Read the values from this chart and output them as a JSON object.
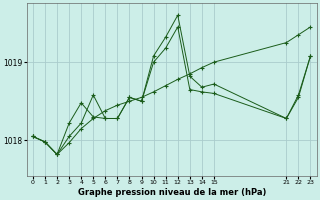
{
  "title": "Graphe pression niveau de la mer (hPa)",
  "bg_color": "#cceee8",
  "line_color": "#1a5c1a",
  "grid_color": "#aacccc",
  "yticks": [
    1018,
    1019
  ],
  "ylim": [
    1017.55,
    1019.75
  ],
  "xlim": [
    -0.5,
    23.5
  ],
  "xticks": [
    0,
    1,
    2,
    3,
    4,
    5,
    6,
    7,
    8,
    9,
    10,
    11,
    12,
    13,
    14,
    15,
    21,
    22,
    23
  ],
  "xtick_labels": [
    "0",
    "1",
    "2",
    "3",
    "4",
    "5",
    "6",
    "7",
    "8",
    "9",
    "10",
    "11",
    "12",
    "13",
    "14",
    "15",
    "21",
    "22",
    "23"
  ],
  "series1_x": [
    0,
    1,
    2,
    3,
    4,
    5,
    6,
    7,
    8,
    9,
    10,
    11,
    12,
    13,
    14,
    15,
    21,
    22,
    23
  ],
  "series1_y": [
    1018.05,
    1017.98,
    1017.82,
    1017.97,
    1018.15,
    1018.28,
    1018.38,
    1018.45,
    1018.5,
    1018.55,
    1018.62,
    1018.7,
    1018.78,
    1018.85,
    1018.93,
    1019.0,
    1019.25,
    1019.35,
    1019.45
  ],
  "series2_x": [
    0,
    1,
    2,
    3,
    4,
    5,
    6,
    7,
    8,
    9,
    10,
    11,
    12,
    13,
    14,
    15,
    21,
    22,
    23
  ],
  "series2_y": [
    1018.05,
    1017.98,
    1017.82,
    1018.22,
    1018.48,
    1018.3,
    1018.28,
    1018.28,
    1018.55,
    1018.5,
    1019.0,
    1019.18,
    1019.45,
    1018.65,
    1018.62,
    1018.6,
    1018.28,
    1018.55,
    1019.08
  ],
  "series3_x": [
    0,
    1,
    2,
    3,
    4,
    5,
    6,
    7,
    8,
    9,
    10,
    11,
    12,
    13,
    14,
    15,
    21,
    22,
    23
  ],
  "series3_y": [
    1018.05,
    1017.98,
    1017.82,
    1018.05,
    1018.22,
    1018.58,
    1018.28,
    1018.28,
    1018.55,
    1018.5,
    1019.08,
    1019.32,
    1019.6,
    1018.82,
    1018.68,
    1018.72,
    1018.28,
    1018.58,
    1019.08
  ]
}
